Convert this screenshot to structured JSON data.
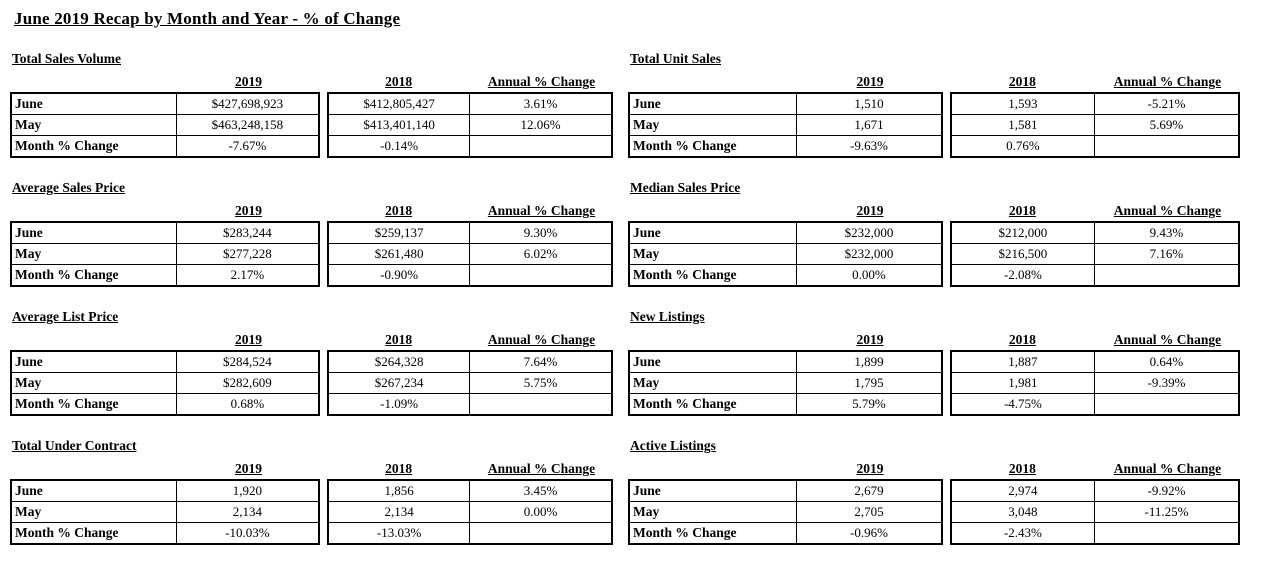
{
  "page": {
    "title": "June 2019 Recap by Month and Year - % of Change"
  },
  "columns": {
    "y2019": "2019",
    "y2018": "2018",
    "annual": "Annual % Change"
  },
  "tables": [
    {
      "title": "Total Sales Volume",
      "rows": [
        {
          "label": "June",
          "y2019": "$427,698,923",
          "y2018": "$412,805,427",
          "annual": "3.61%"
        },
        {
          "label": "May",
          "y2019": "$463,248,158",
          "y2018": "$413,401,140",
          "annual": "12.06%"
        },
        {
          "label": "Month % Change",
          "y2019": "-7.67%",
          "y2018": "-0.14%",
          "annual": ""
        }
      ]
    },
    {
      "title": "Total Unit Sales",
      "rows": [
        {
          "label": "June",
          "y2019": "1,510",
          "y2018": "1,593",
          "annual": "-5.21%"
        },
        {
          "label": "May",
          "y2019": "1,671",
          "y2018": "1,581",
          "annual": "5.69%"
        },
        {
          "label": "Month % Change",
          "y2019": "-9.63%",
          "y2018": "0.76%",
          "annual": ""
        }
      ]
    },
    {
      "title": "Average Sales Price",
      "rows": [
        {
          "label": "June",
          "y2019": "$283,244",
          "y2018": "$259,137",
          "annual": "9.30%"
        },
        {
          "label": "May",
          "y2019": "$277,228",
          "y2018": "$261,480",
          "annual": "6.02%"
        },
        {
          "label": "Month % Change",
          "y2019": "2.17%",
          "y2018": "-0.90%",
          "annual": ""
        }
      ]
    },
    {
      "title": "Median Sales Price",
      "rows": [
        {
          "label": "June",
          "y2019": "$232,000",
          "y2018": "$212,000",
          "annual": "9.43%"
        },
        {
          "label": "May",
          "y2019": "$232,000",
          "y2018": "$216,500",
          "annual": "7.16%"
        },
        {
          "label": "Month % Change",
          "y2019": "0.00%",
          "y2018": "-2.08%",
          "annual": ""
        }
      ]
    },
    {
      "title": "Average List Price",
      "rows": [
        {
          "label": "June",
          "y2019": "$284,524",
          "y2018": "$264,328",
          "annual": "7.64%"
        },
        {
          "label": "May",
          "y2019": "$282,609",
          "y2018": "$267,234",
          "annual": "5.75%"
        },
        {
          "label": "Month % Change",
          "y2019": "0.68%",
          "y2018": "-1.09%",
          "annual": ""
        }
      ]
    },
    {
      "title": "New Listings",
      "rows": [
        {
          "label": "June",
          "y2019": "1,899",
          "y2018": "1,887",
          "annual": "0.64%"
        },
        {
          "label": "May",
          "y2019": "1,795",
          "y2018": "1,981",
          "annual": "-9.39%"
        },
        {
          "label": "Month % Change",
          "y2019": "5.79%",
          "y2018": "-4.75%",
          "annual": ""
        }
      ]
    },
    {
      "title": "Total Under Contract",
      "rows": [
        {
          "label": "June",
          "y2019": "1,920",
          "y2018": "1,856",
          "annual": "3.45%"
        },
        {
          "label": "May",
          "y2019": "2,134",
          "y2018": "2,134",
          "annual": "0.00%"
        },
        {
          "label": "Month % Change",
          "y2019": "-10.03%",
          "y2018": "-13.03%",
          "annual": ""
        }
      ]
    },
    {
      "title": "Active Listings",
      "rows": [
        {
          "label": "June",
          "y2019": "2,679",
          "y2018": "2,974",
          "annual": "-9.92%"
        },
        {
          "label": "May",
          "y2019": "2,705",
          "y2018": "3,048",
          "annual": "-11.25%"
        },
        {
          "label": "Month % Change",
          "y2019": "-0.96%",
          "y2018": "-2.43%",
          "annual": ""
        }
      ]
    }
  ]
}
